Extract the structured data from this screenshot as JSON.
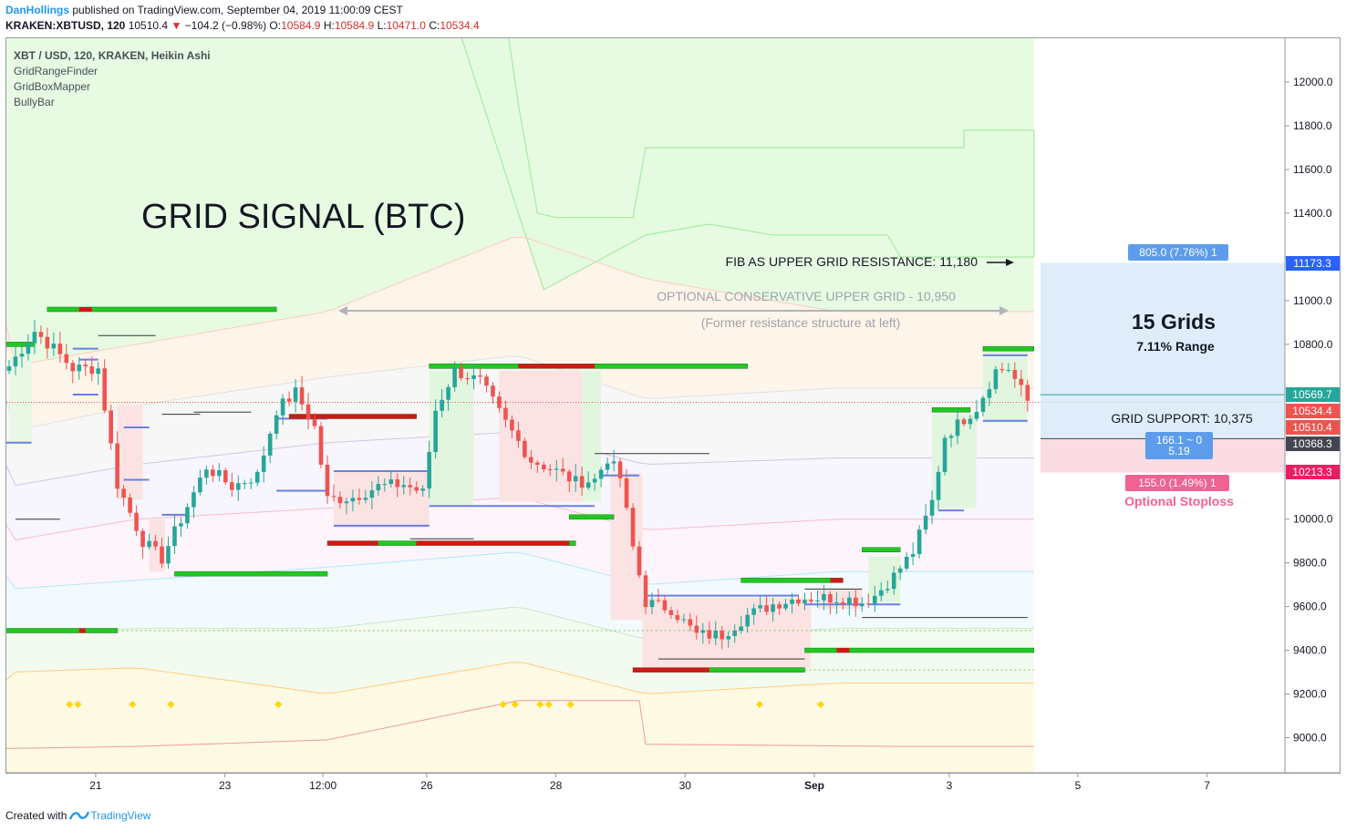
{
  "header": {
    "author": "DanHollings",
    "published": "published on TradingView.com, September 04, 2019 11:00:09 CEST",
    "symbol": "KRAKEN:XBTUSD, 120",
    "last": "10510.4",
    "change": "−104.2 (−0.98%)",
    "o_label": "O:",
    "o_value": "10584.9",
    "h_label": "H:",
    "h_value": "10584.9",
    "l_label": "L:",
    "l_value": "10471.0",
    "c_label": "C:",
    "c_value": "10534.4"
  },
  "legend": {
    "title": "XBT / USD, 120, KRAKEN, Heikin Ashi",
    "indicators": [
      "GridRangeFinder",
      "GridBoxMapper",
      "BullyBar"
    ]
  },
  "footer": {
    "prefix": "Created with",
    "brand": "TradingView"
  },
  "colors": {
    "up": "#26a69a",
    "down": "#ef5350",
    "grid_green": "#22c722",
    "grid_red": "#d01818",
    "accent_blue": "#5d9cec",
    "pink": "#f06292",
    "diamond": "#ffd600"
  },
  "chart_data": {
    "type": "candlestick",
    "style": "Heikin Ashi",
    "y_axis": {
      "min": 8850,
      "max": 12230,
      "ticks": [
        9000,
        9200,
        9400,
        9600,
        9800,
        10000,
        10200,
        10400,
        10600,
        10800,
        11000,
        11200,
        11400,
        11600,
        11800,
        12000
      ],
      "tick_labels": [
        "9000.0",
        "9200.0",
        "9400.0",
        "9600.0",
        "9800.0",
        "10000.0",
        "",
        "",
        "",
        "10800.0",
        "11000.0",
        "",
        "11400.0",
        "11600.0",
        "11800.0",
        "12000.0"
      ]
    },
    "x_axis": {
      "ticks": [
        {
          "label": "21",
          "i": 13.6
        },
        {
          "label": "23",
          "i": 33.9
        },
        {
          "label": "12:00",
          "i": 49.3
        },
        {
          "label": "26",
          "i": 65.6
        },
        {
          "label": "28",
          "i": 85.9
        },
        {
          "label": "30",
          "i": 106.2
        },
        {
          "label": "Sep",
          "i": 126.5
        },
        {
          "label": "3",
          "i": 147.7
        },
        {
          "label": "5",
          "i": 167.9
        },
        {
          "label": "7",
          "i": 188.2
        }
      ]
    },
    "num_candles": 161,
    "candles": [],
    "price_labels": [
      {
        "value": 11173.3,
        "text": "11173.3",
        "bg": "#2962ff"
      },
      {
        "value": 10569.7,
        "text": "10569.7",
        "bg": "#26a69a"
      },
      {
        "value": 10534.4,
        "text": "10534.4",
        "bg": "#ef5350"
      },
      {
        "value": 10510.4,
        "text": "10510.4",
        "bg": "#ef5350"
      },
      {
        "value": 10368.3,
        "text": "10368.3",
        "bg": "#434651"
      },
      {
        "value": 10213.3,
        "text": "10213.3",
        "bg": "#e91e63"
      }
    ],
    "annotations": {
      "title": "GRID SIGNAL (BTC)",
      "fib_resistance": "FIB AS UPPER GRID RESISTANCE: 11,180",
      "conservative_grid": "OPTIONAL CONSERVATIVE UPPER GRID - 10,950",
      "former_resistance": "(Former resistance structure at left)",
      "grids_count": "15 Grids",
      "range": "7.11% Range",
      "grid_support": "GRID SUPPORT: 10,375",
      "upper_box_label": "805.0 (7.76%) 1",
      "mid_box_label_1": "166.1 ~ 0",
      "mid_box_label_2": "5.19",
      "lower_box_label": "155.0 (1.49%) 1",
      "stoploss": "Optional Stoploss"
    },
    "diamonds": [
      {
        "i": 9.5
      },
      {
        "i": 10.8
      },
      {
        "i": 19.4
      },
      {
        "i": 25.4
      },
      {
        "i": 42.3
      },
      {
        "i": 77.6
      },
      {
        "i": 79.5
      },
      {
        "i": 83.4
      },
      {
        "i": 84.8
      },
      {
        "i": 88.2
      },
      {
        "i": 117.9
      },
      {
        "i": 127.5
      }
    ]
  }
}
